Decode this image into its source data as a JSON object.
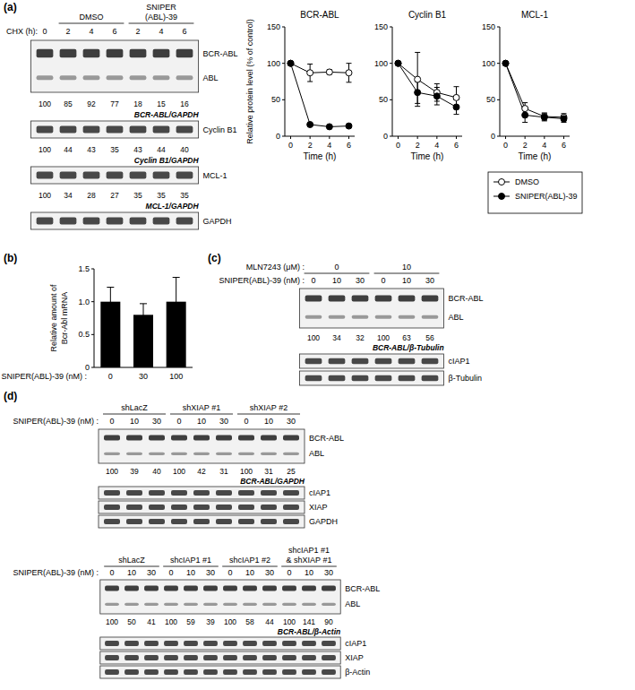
{
  "chart_data": [
    {
      "type": "line",
      "title": "BCR-ABL",
      "y_label": "Relative protein level (% of control)",
      "x_label": "Time (h)",
      "x": [
        0,
        2,
        4,
        6
      ],
      "xlim": [
        -0.6,
        6.6
      ],
      "xticks": [
        0,
        2,
        4,
        6
      ],
      "ylim": [
        0,
        150
      ],
      "yticks": [
        0,
        50,
        100,
        150
      ],
      "series": [
        {
          "name": "DMSO",
          "color": "#000000",
          "marker": "circle-open",
          "values": [
            100,
            87,
            88,
            87
          ],
          "errors": [
            0,
            12,
            3,
            13
          ]
        },
        {
          "name": "SNIPER(ABL)-39",
          "color": "#000000",
          "marker": "circle",
          "values": [
            100,
            16,
            13,
            14
          ],
          "errors": [
            0,
            2,
            1,
            2
          ]
        }
      ]
    },
    {
      "type": "line",
      "title": "Cyclin B1",
      "x_label": "Time (h)",
      "x": [
        0,
        2,
        4,
        6
      ],
      "xlim": [
        -0.6,
        6.6
      ],
      "xticks": [
        0,
        2,
        4,
        6
      ],
      "ylim": [
        0,
        150
      ],
      "yticks": [
        0,
        50,
        100,
        150
      ],
      "series": [
        {
          "name": "DMSO",
          "color": "#000000",
          "marker": "circle-open",
          "values": [
            100,
            78,
            60,
            53
          ],
          "errors": [
            0,
            37,
            12,
            15
          ]
        },
        {
          "name": "SNIPER(ABL)-39",
          "color": "#000000",
          "marker": "circle",
          "values": [
            100,
            60,
            55,
            40
          ],
          "errors": [
            0,
            15,
            12,
            10
          ]
        }
      ]
    },
    {
      "type": "line",
      "title": "MCL-1",
      "x_label": "Time (h)",
      "x": [
        0,
        2,
        4,
        6
      ],
      "xlim": [
        -0.6,
        6.6
      ],
      "xticks": [
        0,
        2,
        4,
        6
      ],
      "ylim": [
        0,
        150
      ],
      "yticks": [
        0,
        50,
        100,
        150
      ],
      "legend": "bottom-right",
      "series": [
        {
          "name": "DMSO",
          "color": "#000000",
          "marker": "circle-open",
          "values": [
            100,
            38,
            27,
            26
          ],
          "errors": [
            0,
            8,
            5,
            5
          ]
        },
        {
          "name": "SNIPER(ABL)-39",
          "color": "#000000",
          "marker": "circle",
          "values": [
            100,
            29,
            26,
            24
          ],
          "errors": [
            0,
            10,
            5,
            5
          ]
        }
      ]
    },
    {
      "type": "bar",
      "y_label": "Relative amount of\nBcr-Abl mRNA",
      "x_label": "SNIPER(ABL)-39 (nM) :",
      "categories": [
        "0",
        "30",
        "100"
      ],
      "values": [
        1.0,
        0.8,
        1.0
      ],
      "errors": [
        0.22,
        0.17,
        0.37
      ],
      "color": "#000000",
      "ylim": [
        0,
        1.5
      ],
      "yticks": [
        0,
        0.5,
        {
          "value": 1,
          "label": "1.0"
        },
        1.5
      ]
    }
  ],
  "figure": {
    "panel_labels": [
      "(a)",
      "(b)",
      "(c)",
      "(d)"
    ],
    "blots": [
      {
        "groups": [
          "DMSO",
          "SNIPER\n(ABL)-39"
        ],
        "lane_label": "CHX (h):",
        "lanes": [
          "0",
          "2",
          "4",
          "6",
          "2",
          "4",
          "6"
        ],
        "rows": [
          {
            "kind": "blot",
            "bands": [
              "BCR-ABL",
              "ABL"
            ]
          },
          {
            "kind": "quant",
            "label": "BCR-ABL/GAPDH",
            "values": [
              100,
              85,
              92,
              77,
              18,
              15,
              16
            ]
          },
          {
            "kind": "blot",
            "bands": [
              "Cyclin B1"
            ]
          },
          {
            "kind": "quant",
            "label": "Cyclin B1/GAPDH",
            "values": [
              100,
              44,
              43,
              35,
              43,
              44,
              40
            ]
          },
          {
            "kind": "blot",
            "bands": [
              "MCL-1"
            ]
          },
          {
            "kind": "quant",
            "label": "MCL-1/GAPDH",
            "values": [
              100,
              34,
              28,
              27,
              35,
              35,
              35
            ]
          },
          {
            "kind": "blot",
            "bands": [
              "GAPDH"
            ]
          }
        ]
      },
      {
        "group_label": "MLN7243 (μM) :",
        "groups": [
          "0",
          "10"
        ],
        "lane_label": "SNIPER(ABL)-39 (nM) :",
        "lanes": [
          "0",
          "10",
          "30",
          "0",
          "10",
          "30"
        ],
        "rows": [
          {
            "kind": "blot",
            "bands": [
              "BCR-ABL",
              "ABL"
            ]
          },
          {
            "kind": "quant",
            "label": "BCR-ABL/β-Tubulin",
            "values": [
              100,
              34,
              32,
              100,
              63,
              56
            ]
          },
          {
            "kind": "blot",
            "bands": [
              "cIAP1"
            ]
          },
          {
            "kind": "blot",
            "bands": [
              "β-Tubulin"
            ]
          }
        ]
      },
      {
        "groups": [
          "shLacZ",
          "shXIAP #1",
          "shXIAP #2"
        ],
        "lane_label": "SNIPER(ABL)-39 (nM) :",
        "lanes": [
          "0",
          "10",
          "30",
          "0",
          "10",
          "30",
          "0",
          "10",
          "30"
        ],
        "rows": [
          {
            "kind": "blot",
            "bands": [
              "BCR-ABL",
              "ABL"
            ]
          },
          {
            "kind": "quant",
            "label": "BCR-ABL/GAPDH",
            "values": [
              100,
              39,
              40,
              100,
              42,
              31,
              100,
              31,
              25
            ]
          },
          {
            "kind": "blot",
            "bands": [
              "cIAP1"
            ]
          },
          {
            "kind": "blot",
            "bands": [
              "XIAP"
            ]
          },
          {
            "kind": "blot",
            "bands": [
              "GAPDH"
            ]
          }
        ]
      },
      {
        "groups": [
          "shLacZ",
          "shcIAP1 #1",
          "shcIAP1 #2",
          "shcIAP1 #1\n& shXIAP #1"
        ],
        "lane_label": "SNIPER(ABL)-39 (nM) :",
        "lanes": [
          "0",
          "10",
          "30",
          "0",
          "10",
          "30",
          "0",
          "10",
          "30",
          "0",
          "10",
          "30"
        ],
        "rows": [
          {
            "kind": "blot",
            "bands": [
              "BCR-ABL",
              "ABL"
            ]
          },
          {
            "kind": "quant",
            "label": "BCR-ABL/β-Actin",
            "values": [
              100,
              50,
              41,
              100,
              59,
              39,
              100,
              58,
              44,
              100,
              141,
              90
            ]
          },
          {
            "kind": "blot",
            "bands": [
              "cIAP1"
            ]
          },
          {
            "kind": "blot",
            "bands": [
              "XIAP"
            ]
          },
          {
            "kind": "blot",
            "bands": [
              "β-Actin"
            ]
          }
        ]
      }
    ]
  }
}
